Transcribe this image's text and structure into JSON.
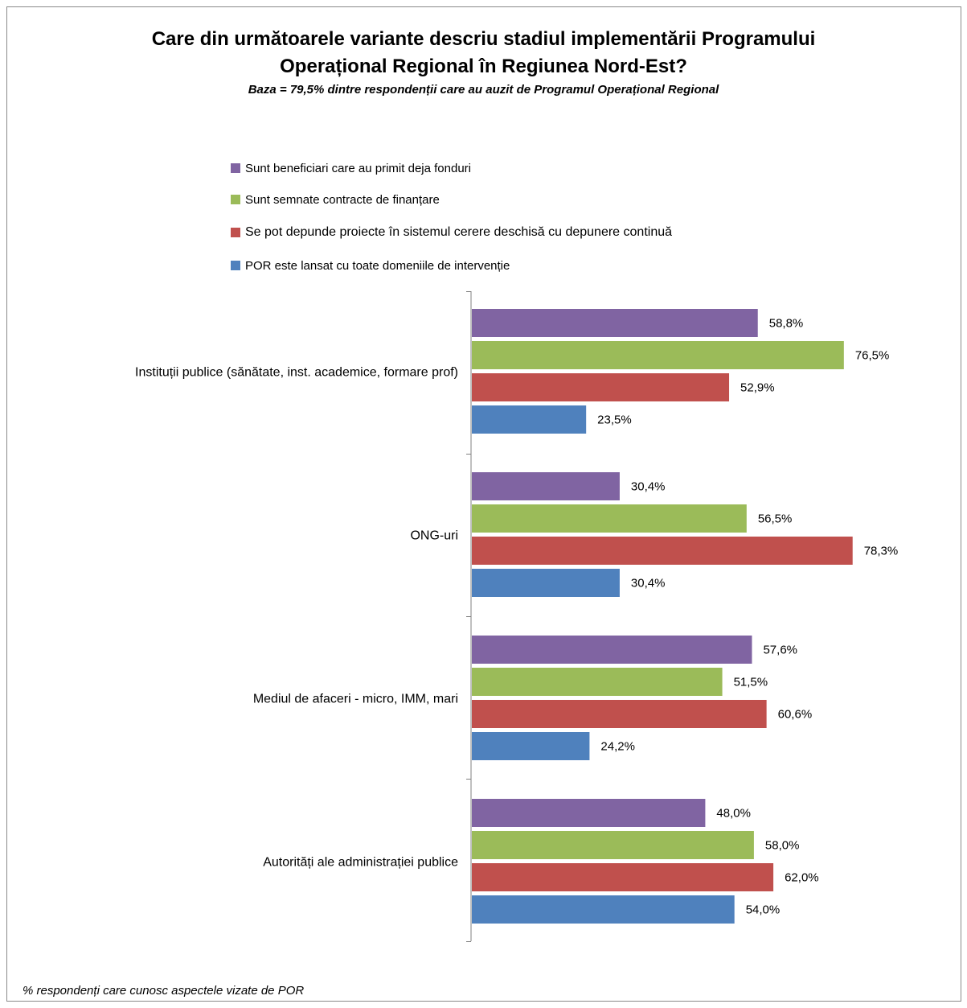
{
  "chart_data": {
    "type": "bar",
    "orientation": "horizontal",
    "title": "Care din următoarele variante descriu stadiul implementării Programului Operațional Regional în Regiunea Nord-Est?",
    "title_lines": [
      "Care din următoarele variante descriu stadiul implementării Programului",
      "Operațional Regional în Regiunea Nord-Est?"
    ],
    "subtitle": "Baza = 79,5% dintre respondenții care au auzit de Programul Operațional Regional",
    "footnote": "% respondenți care cunosc aspectele vizate de POR",
    "categories": [
      "Instituții publice (sănătate, inst. academice, formare prof)",
      "ONG-uri",
      "Mediul de afaceri - micro, IMM, mari",
      "Autorități ale administrației publice"
    ],
    "series": [
      {
        "name": "Sunt beneficiari care au primit deja fonduri",
        "color": "#8064a2",
        "values": [
          58.8,
          30.4,
          57.6,
          48.0
        ],
        "labels": [
          "58,8%",
          "30,4%",
          "57,6%",
          "48,0%"
        ]
      },
      {
        "name": "Sunt semnate contracte de finanțare",
        "color": "#9bbb59",
        "values": [
          76.5,
          56.5,
          51.5,
          58.0
        ],
        "labels": [
          "76,5%",
          "56,5%",
          "51,5%",
          "58,0%"
        ]
      },
      {
        "name": "Se pot depunde proiecte în sistemul cerere deschisă cu depunere continuă",
        "color": "#c0504d",
        "values": [
          52.9,
          78.3,
          60.6,
          62.0
        ],
        "labels": [
          "52,9%",
          "78,3%",
          "60,6%",
          "62,0%"
        ]
      },
      {
        "name": "POR este lansat cu toate domeniile de intervenție",
        "color": "#4f81bd",
        "values": [
          23.5,
          30.4,
          24.2,
          54.0
        ],
        "labels": [
          "23,5%",
          "30,4%",
          "24,2%",
          "54,0%"
        ]
      }
    ],
    "xlim": [
      0,
      100
    ],
    "grid": false,
    "legend_position": "top"
  }
}
